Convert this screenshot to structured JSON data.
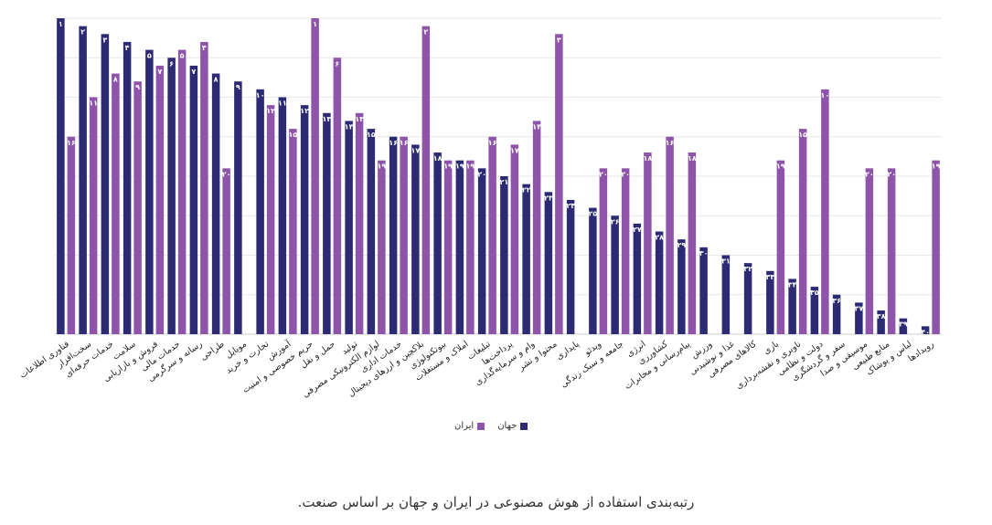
{
  "chart_data": {
    "type": "bar",
    "categories": [
      "فناوری اطلاعات",
      "سخت‌افزار",
      "خدمات حرفه‌ای",
      "سلامت",
      "فروش و بازاریابی",
      "خدمات مالی",
      "رسانه و سرگرمی",
      "طراحی",
      "موبایل",
      "تجارت و خرید",
      "آموزش",
      "حریم خصوصی و امنیت",
      "حمل و نقل",
      "تولید",
      "لوازم الکترونیکی مصرفی",
      "خدمات اداری",
      "بلاکچین و ارزهای دیجیتال",
      "بیوتکنولوژی",
      "املاک و مستغلات",
      "تبلیغات",
      "پرداخت‌ها",
      "وام و سرمایه‌گذاری",
      "محتوا و نشر",
      "پایداری",
      "ویدئو",
      "جامعه و سبک زندگی",
      "انرژی",
      "کشاورزی",
      "پیام‌رسانی و مخابرات",
      "ورزش",
      "غذا و نوشیدنی",
      "کالاهای مصرفی",
      "بازی",
      "ناوبری و نقشه‌برداری",
      "دولت و نظامی",
      "سفر و گردشگری",
      "موسیقی و صدا",
      "منابع طبیعی",
      "لباس و پوشاک",
      "رویدادها"
    ],
    "series": [
      {
        "name": "جهان",
        "color": "#2b2a73",
        "values": [
          1,
          2,
          3,
          4,
          5,
          6,
          7,
          8,
          9,
          10,
          11,
          12,
          13,
          14,
          15,
          16,
          17,
          18,
          19,
          20,
          21,
          22,
          23,
          24,
          25,
          26,
          27,
          28,
          29,
          30,
          31,
          32,
          33,
          34,
          35,
          36,
          37,
          38,
          39,
          40
        ],
        "labels": [
          "۱",
          "۲",
          "۳",
          "۴",
          "۵",
          "۶",
          "۷",
          "۸",
          "۹",
          "۱۰",
          "۱۱",
          "۱۲",
          "۱۳",
          "۱۴",
          "۱۵",
          "۱۶",
          "۱۷",
          "۱۸",
          "۱۹",
          "۲۰",
          "۲۱",
          "۲۲",
          "۲۳",
          "۲۴",
          "۲۵",
          "۲۶",
          "۲۷",
          "۲۸",
          "۲۹",
          "۳۰",
          "۳۱",
          "۳۲",
          "۳۳",
          "۳۴",
          "۳۵",
          "۳۶",
          "۳۷",
          "۳۸",
          "۳۹",
          "۴۰"
        ]
      },
      {
        "name": "ایران",
        "color": "#8e54a9",
        "values": [
          16,
          11,
          8,
          9,
          7,
          5,
          4,
          20,
          null,
          12,
          15,
          1,
          6,
          13,
          19,
          16,
          2,
          19,
          19,
          16,
          17,
          14,
          3,
          null,
          20,
          20,
          18,
          16,
          18,
          null,
          null,
          null,
          19,
          15,
          10,
          null,
          20,
          20,
          null,
          19
        ],
        "labels": [
          "۱۶",
          "۱۱",
          "۸",
          "۹",
          "۷",
          "۵",
          "۴",
          "۲۰",
          null,
          "۱۲",
          "۱۵",
          "۱",
          "۶",
          "۱۳",
          "۱۹",
          "۱۶",
          "۲",
          "۱۹",
          "۱۹",
          "۱۶",
          "۱۷",
          "۱۴",
          "۳",
          null,
          "۲۰",
          "۲۰",
          "۱۸",
          "۱۶",
          "۱۸",
          null,
          null,
          null,
          "۱۹",
          "۱۵",
          "۱۰",
          null,
          "۲۰",
          "۲۰",
          null,
          "۱۹"
        ]
      }
    ],
    "ylim": [
      0,
      40
    ],
    "grid": true,
    "legend_position": "bottom-center"
  },
  "legend": {
    "world": "جهان",
    "iran": "ایران"
  },
  "caption": "رتبه‌بندی استفاده از هوش مصنوعی در ایران و جهان بر اساس صنعت."
}
